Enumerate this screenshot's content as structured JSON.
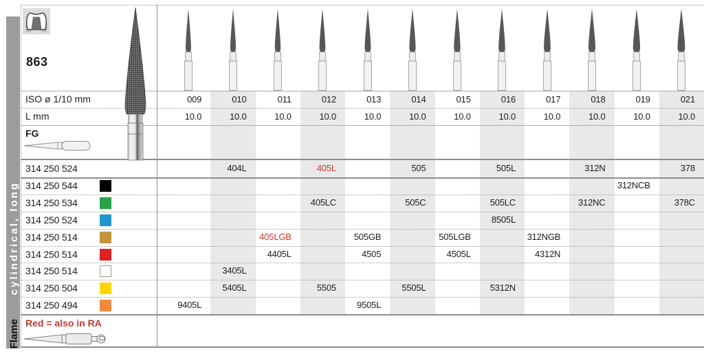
{
  "page": {
    "figure_number": "863",
    "sidebar": {
      "category": "Flame",
      "subcategory": "cylindrical, long"
    },
    "bottom_note": "Red = also in RA"
  },
  "table": {
    "iso_label": "ISO ø 1/10 mm",
    "length_label": "L mm",
    "shank_label": "FG",
    "columns": [
      {
        "iso": "009",
        "l": "10.0"
      },
      {
        "iso": "010",
        "l": "10.0"
      },
      {
        "iso": "011",
        "l": "10.0"
      },
      {
        "iso": "012",
        "l": "10.0"
      },
      {
        "iso": "013",
        "l": "10.0"
      },
      {
        "iso": "014",
        "l": "10.0"
      },
      {
        "iso": "015",
        "l": "10.0"
      },
      {
        "iso": "016",
        "l": "10.0"
      },
      {
        "iso": "017",
        "l": "10.0"
      },
      {
        "iso": "018",
        "l": "10.0"
      },
      {
        "iso": "019",
        "l": "10.0"
      },
      {
        "iso": "021",
        "l": "10.0"
      }
    ],
    "rows": [
      {
        "code": "314 250 524",
        "ring": "none",
        "cells": [
          {
            "col": 1,
            "value": "404L",
            "red": false
          },
          {
            "col": 3,
            "value": "405L",
            "red": true
          },
          {
            "col": 5,
            "value": "505",
            "red": false
          },
          {
            "col": 7,
            "value": "505L",
            "red": false
          },
          {
            "col": 9,
            "value": "312N",
            "red": false
          },
          {
            "col": 11,
            "value": "378",
            "red": false
          }
        ]
      },
      {
        "code": "314 250 544",
        "ring": "black",
        "cells": [
          {
            "col": 10,
            "value": "312NCB",
            "red": false
          }
        ]
      },
      {
        "code": "314 250 534",
        "ring": "green",
        "cells": [
          {
            "col": 3,
            "value": "405LC",
            "red": false
          },
          {
            "col": 5,
            "value": "505C",
            "red": false
          },
          {
            "col": 7,
            "value": "505LC",
            "red": false
          },
          {
            "col": 9,
            "value": "312NC",
            "red": false
          },
          {
            "col": 11,
            "value": "378C",
            "red": false
          }
        ]
      },
      {
        "code": "314 250 524",
        "ring": "blue",
        "cells": [
          {
            "col": 7,
            "value": "8505L",
            "red": false
          }
        ]
      },
      {
        "code": "314 250 514",
        "ring": "gold",
        "cells": [
          {
            "col": 2,
            "value": "405LGB",
            "red": true
          },
          {
            "col": 4,
            "value": "505GB",
            "red": false
          },
          {
            "col": 6,
            "value": "505LGB",
            "red": false
          },
          {
            "col": 8,
            "value": "312NGB",
            "red": false
          }
        ]
      },
      {
        "code": "314 250 514",
        "ring": "red",
        "cells": [
          {
            "col": 2,
            "value": "4405L",
            "red": false
          },
          {
            "col": 4,
            "value": "4505",
            "red": false
          },
          {
            "col": 6,
            "value": "4505L",
            "red": false
          },
          {
            "col": 8,
            "value": "4312N",
            "red": false
          }
        ]
      },
      {
        "code": "314 250 514",
        "ring": "white",
        "cells": [
          {
            "col": 1,
            "value": "3405L",
            "red": false
          }
        ]
      },
      {
        "code": "314 250 504",
        "ring": "yellow",
        "cells": [
          {
            "col": 1,
            "value": "5405L",
            "red": false
          },
          {
            "col": 3,
            "value": "5505",
            "red": false
          },
          {
            "col": 5,
            "value": "5505L",
            "red": false
          },
          {
            "col": 7,
            "value": "5312N",
            "red": false
          }
        ]
      },
      {
        "code": "314 250 494",
        "ring": "orange",
        "cells": [
          {
            "col": 0,
            "value": "9405L",
            "red": false
          },
          {
            "col": 4,
            "value": "9505L",
            "red": false
          }
        ]
      }
    ],
    "ring_colors": {
      "black": "#000000",
      "green": "#2aa347",
      "blue": "#2095d2",
      "gold": "#c6933f",
      "red": "#de2126",
      "white": "#ffffff",
      "yellow": "#fed700",
      "orange": "#ef8a3d"
    }
  },
  "styles": {
    "accent_red": "#c0392e",
    "band_gray": "#e9e9e9",
    "sidebar_gray": "#9c9c9c"
  }
}
